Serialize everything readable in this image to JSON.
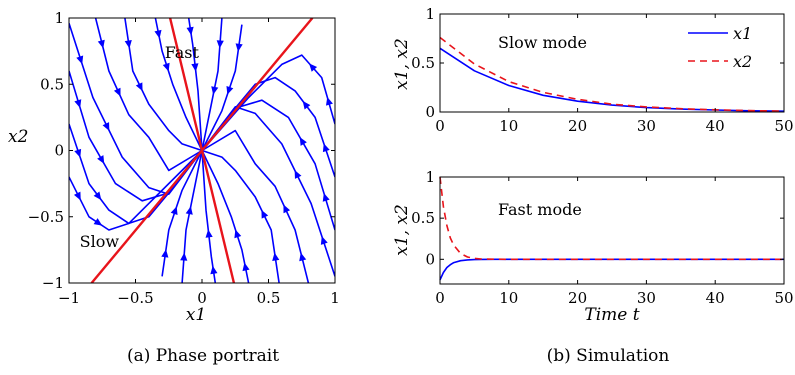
{
  "colors": {
    "x1": "#0000ff",
    "x2": "#e8141b",
    "eigen": "#e8141b",
    "stream": "#0000ff"
  },
  "chart_data": [
    {
      "type": "line",
      "subtype": "phase-portrait",
      "caption": "(a) Phase portrait",
      "xlabel": "x1",
      "ylabel": "x2",
      "xlim": [
        -1,
        1
      ],
      "ylim": [
        -1,
        1
      ],
      "xticks": [
        "−1",
        "−0.5",
        "0",
        "0.5",
        "1"
      ],
      "yticks": [
        "−1",
        "−0.5",
        "0",
        "0.5",
        "1"
      ],
      "xtick_values": [
        -1,
        -0.5,
        0,
        0.5,
        1
      ],
      "ytick_values": [
        -1,
        -0.5,
        0,
        0.5,
        1
      ],
      "annotations": [
        {
          "text": "Fast",
          "x": -0.28,
          "y": 0.7
        },
        {
          "text": "Slow",
          "x": -0.92,
          "y": -0.73
        }
      ],
      "eigen_lines": [
        {
          "name": "Fast",
          "points": [
            [
              -0.24,
              1
            ],
            [
              0.24,
              -1
            ]
          ]
        },
        {
          "name": "Slow",
          "points": [
            [
              -0.83,
              -1
            ],
            [
              0.83,
              1
            ]
          ]
        }
      ],
      "trajectories": [
        [
          [
            -1,
            0.96
          ],
          [
            -0.82,
            0.4
          ],
          [
            -0.6,
            -0.05
          ],
          [
            -0.4,
            -0.28
          ],
          [
            -0.25,
            -0.33
          ],
          [
            0,
            0
          ]
        ],
        [
          [
            -0.8,
            1
          ],
          [
            -0.7,
            0.6
          ],
          [
            -0.55,
            0.27
          ],
          [
            -0.4,
            0.1
          ],
          [
            -0.25,
            -0.15
          ],
          [
            0,
            0
          ]
        ],
        [
          [
            -0.58,
            1
          ],
          [
            -0.52,
            0.6
          ],
          [
            -0.4,
            0.35
          ],
          [
            -0.25,
            0.15
          ],
          [
            -0.15,
            0.05
          ],
          [
            0,
            0
          ]
        ],
        [
          [
            -0.35,
            1
          ],
          [
            -0.3,
            0.75
          ],
          [
            -0.22,
            0.5
          ],
          [
            -0.12,
            0.25
          ],
          [
            0,
            0
          ]
        ],
        [
          [
            -0.1,
            1
          ],
          [
            -0.07,
            0.8
          ],
          [
            -0.03,
            0.45
          ],
          [
            0,
            0
          ]
        ],
        [
          [
            0.15,
            1
          ],
          [
            0.12,
            0.6
          ],
          [
            0.06,
            0.3
          ],
          [
            0,
            0
          ]
        ],
        [
          [
            0.3,
            0.95
          ],
          [
            0.25,
            0.6
          ],
          [
            0.15,
            0.3
          ],
          [
            0,
            0
          ]
        ],
        [
          [
            -1,
            0.6
          ],
          [
            -0.85,
            0.1
          ],
          [
            -0.65,
            -0.25
          ],
          [
            -0.45,
            -0.38
          ],
          [
            -0.25,
            -0.32
          ],
          [
            0,
            0
          ]
        ],
        [
          [
            -1,
            0.2
          ],
          [
            -0.85,
            -0.25
          ],
          [
            -0.7,
            -0.45
          ],
          [
            -0.55,
            -0.55
          ],
          [
            -0.4,
            -0.5
          ],
          [
            -0.25,
            -0.32
          ],
          [
            0,
            0
          ]
        ],
        [
          [
            -1,
            -0.2
          ],
          [
            -0.85,
            -0.5
          ],
          [
            -0.7,
            -0.6
          ],
          [
            -0.55,
            -0.55
          ],
          [
            0,
            0
          ]
        ],
        [
          [
            1,
            -0.95
          ],
          [
            0.82,
            -0.4
          ],
          [
            0.6,
            0.05
          ],
          [
            0.4,
            0.28
          ],
          [
            0.25,
            0.33
          ],
          [
            0,
            0
          ]
        ],
        [
          [
            0.8,
            -1
          ],
          [
            0.7,
            -0.6
          ],
          [
            0.55,
            -0.27
          ],
          [
            0.4,
            -0.1
          ],
          [
            0.25,
            0.15
          ],
          [
            0,
            0
          ]
        ],
        [
          [
            0.58,
            -1
          ],
          [
            0.52,
            -0.6
          ],
          [
            0.4,
            -0.35
          ],
          [
            0.25,
            -0.15
          ],
          [
            0.15,
            -0.05
          ],
          [
            0,
            0
          ]
        ],
        [
          [
            0.35,
            -1
          ],
          [
            0.3,
            -0.75
          ],
          [
            0.22,
            -0.5
          ],
          [
            0.12,
            -0.25
          ],
          [
            0,
            0
          ]
        ],
        [
          [
            0.1,
            -1
          ],
          [
            0.07,
            -0.8
          ],
          [
            0.03,
            -0.45
          ],
          [
            0,
            0
          ]
        ],
        [
          [
            -0.15,
            -1
          ],
          [
            -0.12,
            -0.6
          ],
          [
            -0.06,
            -0.3
          ],
          [
            0,
            0
          ]
        ],
        [
          [
            -0.3,
            -0.95
          ],
          [
            -0.25,
            -0.6
          ],
          [
            -0.15,
            -0.3
          ],
          [
            0,
            0
          ]
        ],
        [
          [
            1,
            -0.6
          ],
          [
            0.85,
            -0.1
          ],
          [
            0.65,
            0.25
          ],
          [
            0.45,
            0.38
          ],
          [
            0.25,
            0.32
          ],
          [
            0,
            0
          ]
        ],
        [
          [
            1,
            -0.2
          ],
          [
            0.85,
            0.25
          ],
          [
            0.7,
            0.45
          ],
          [
            0.55,
            0.55
          ],
          [
            0.4,
            0.5
          ],
          [
            0.25,
            0.32
          ],
          [
            0,
            0
          ]
        ],
        [
          [
            1,
            0.2
          ],
          [
            0.9,
            0.55
          ],
          [
            0.75,
            0.72
          ],
          [
            0.6,
            0.65
          ],
          [
            0.35,
            0.4
          ],
          [
            0,
            0
          ]
        ]
      ]
    },
    {
      "type": "line",
      "annotation": "Slow mode",
      "xlabel": "",
      "ylabel": "x1, x2",
      "xlim": [
        0,
        50
      ],
      "ylim": [
        0,
        1
      ],
      "xticks": [
        "0",
        "10",
        "20",
        "30",
        "40",
        "50"
      ],
      "yticks": [
        "0",
        "0.5",
        "1"
      ],
      "xtick_values": [
        0,
        10,
        20,
        30,
        40,
        50
      ],
      "ytick_values": [
        0,
        0.5,
        1
      ],
      "legend": {
        "placement": "top-right",
        "entries": [
          "x1",
          "x2"
        ]
      },
      "x": [
        0,
        5,
        10,
        15,
        20,
        25,
        30,
        35,
        40,
        45,
        50
      ],
      "series": [
        {
          "name": "x1",
          "style": "solid",
          "values": [
            0.65,
            0.42,
            0.27,
            0.17,
            0.11,
            0.07,
            0.045,
            0.03,
            0.02,
            0.012,
            0.008
          ]
        },
        {
          "name": "x2",
          "style": "dashed",
          "values": [
            0.76,
            0.49,
            0.31,
            0.2,
            0.13,
            0.08,
            0.052,
            0.034,
            0.022,
            0.014,
            0.009
          ]
        }
      ]
    },
    {
      "type": "line",
      "annotation": "Fast mode",
      "caption": "(b) Simulation",
      "xlabel": "Time t",
      "ylabel": "x1, x2",
      "xlim": [
        0,
        50
      ],
      "ylim": [
        -0.3,
        1
      ],
      "xticks": [
        "0",
        "10",
        "20",
        "30",
        "40",
        "50"
      ],
      "yticks": [
        "0",
        "0.5",
        "1"
      ],
      "xtick_values": [
        0,
        10,
        20,
        30,
        40,
        50
      ],
      "ytick_values": [
        0,
        0.5,
        1
      ],
      "x": [
        0,
        0.5,
        1,
        1.5,
        2,
        3,
        4,
        5,
        6,
        8,
        10,
        15,
        20,
        30,
        40,
        50
      ],
      "series": [
        {
          "name": "x1",
          "style": "solid",
          "values": [
            -0.25,
            -0.16,
            -0.1,
            -0.065,
            -0.04,
            -0.017,
            -0.007,
            -0.003,
            -0.001,
            0,
            0,
            0,
            0,
            0,
            0,
            0
          ]
        },
        {
          "name": "x2",
          "style": "dashed",
          "values": [
            1.0,
            0.64,
            0.41,
            0.26,
            0.17,
            0.07,
            0.028,
            0.011,
            0.004,
            0.001,
            0,
            0,
            0,
            0,
            0,
            0
          ]
        }
      ]
    }
  ]
}
